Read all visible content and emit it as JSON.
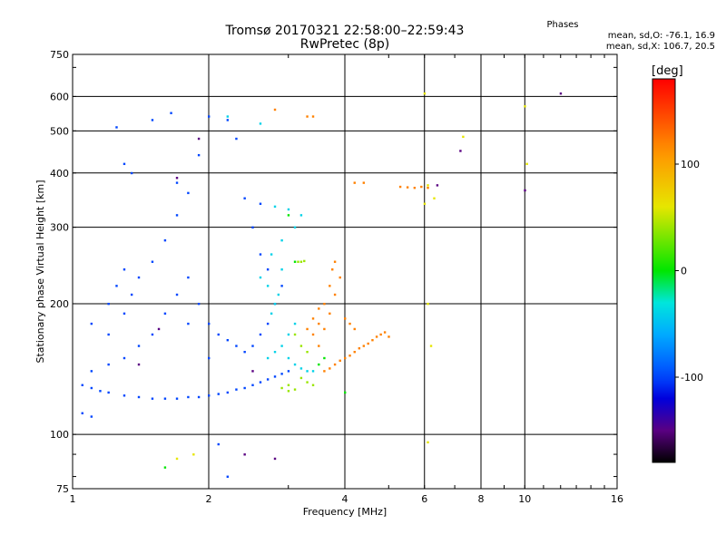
{
  "header": {
    "title_line1": "Tromsø 20170321 22:58:00–22:59:43",
    "title_line2": "RwPretec (8p)"
  },
  "phases_box": {
    "heading": "Phases",
    "line1": "mean, sd,O: -76.1, 16.9",
    "line2": "mean, sd,X: 106.7, 20.5"
  },
  "colorbar": {
    "unit_label": "[deg]",
    "ticks": [
      "100",
      "0",
      "-100"
    ],
    "tick_values": [
      100,
      0,
      -100
    ],
    "range": [
      -180,
      180
    ]
  },
  "chart_data": {
    "type": "scatter",
    "title": "Tromsø 20170321 22:58:00–22:59:43",
    "subtitle": "RwPretec (8p)",
    "xlabel": "Frequency [MHz]",
    "ylabel": "Stationary phase Virtual Height [km]",
    "x_scale": "log",
    "y_scale": "log",
    "xlim": [
      1,
      16
    ],
    "ylim": [
      75,
      750
    ],
    "x_ticks": [
      1,
      2,
      4,
      6,
      8,
      10,
      16
    ],
    "x_tick_labels": [
      "1",
      "2",
      "4",
      "6",
      "8",
      "10",
      "16"
    ],
    "y_ticks": [
      75,
      100,
      200,
      300,
      400,
      500,
      600,
      750
    ],
    "y_tick_labels": [
      "75",
      "100",
      "200",
      "300",
      "400",
      "500",
      "600",
      "750"
    ],
    "grid": true,
    "color_encoding": "phase [deg]",
    "series": [
      {
        "points": [
          [
            1.05,
            130
          ],
          [
            1.1,
            128
          ],
          [
            1.15,
            126
          ],
          [
            1.2,
            125
          ],
          [
            1.3,
            123
          ],
          [
            1.4,
            122
          ],
          [
            1.5,
            121
          ],
          [
            1.6,
            121
          ],
          [
            1.7,
            121
          ],
          [
            1.8,
            122
          ],
          [
            1.9,
            122
          ],
          [
            2.0,
            123
          ],
          [
            2.1,
            124
          ],
          [
            2.2,
            125
          ],
          [
            2.3,
            127
          ],
          [
            2.4,
            128
          ],
          [
            2.5,
            130
          ],
          [
            2.6,
            132
          ],
          [
            2.7,
            134
          ],
          [
            2.8,
            136
          ],
          [
            2.9,
            138
          ],
          [
            3.0,
            140
          ],
          [
            1.1,
            140
          ],
          [
            1.2,
            145
          ],
          [
            1.3,
            150
          ],
          [
            1.4,
            160
          ],
          [
            1.5,
            170
          ],
          [
            1.6,
            190
          ],
          [
            1.7,
            210
          ],
          [
            1.8,
            230
          ],
          [
            1.2,
            170
          ],
          [
            1.3,
            190
          ],
          [
            1.35,
            210
          ],
          [
            1.4,
            230
          ],
          [
            1.5,
            250
          ],
          [
            1.6,
            280
          ],
          [
            1.7,
            320
          ],
          [
            1.8,
            360
          ],
          [
            1.3,
            420
          ],
          [
            1.35,
            400
          ],
          [
            1.25,
            510
          ],
          [
            1.5,
            530
          ],
          [
            1.65,
            550
          ],
          [
            1.9,
            440
          ],
          [
            1.7,
            380
          ],
          [
            2.0,
            180
          ],
          [
            2.1,
            170
          ],
          [
            2.2,
            165
          ],
          [
            2.3,
            160
          ],
          [
            2.4,
            155
          ],
          [
            2.5,
            160
          ],
          [
            2.6,
            170
          ],
          [
            2.7,
            180
          ],
          [
            2.8,
            200
          ],
          [
            2.9,
            220
          ],
          [
            2.7,
            240
          ],
          [
            2.6,
            260
          ],
          [
            2.5,
            300
          ],
          [
            2.6,
            340
          ],
          [
            2.4,
            350
          ],
          [
            2.2,
            530
          ],
          [
            2.3,
            480
          ],
          [
            2.0,
            540
          ],
          [
            1.9,
            200
          ],
          [
            1.8,
            180
          ],
          [
            2.0,
            150
          ],
          [
            1.1,
            180
          ],
          [
            1.2,
            200
          ],
          [
            1.25,
            220
          ],
          [
            1.3,
            240
          ],
          [
            1.1,
            110
          ],
          [
            1.05,
            112
          ],
          [
            2.1,
            95
          ],
          [
            2.2,
            80
          ]
        ],
        "phase": -100
      },
      {
        "points": [
          [
            2.7,
            150
          ],
          [
            2.8,
            155
          ],
          [
            2.9,
            160
          ],
          [
            3.0,
            170
          ],
          [
            3.1,
            180
          ],
          [
            2.75,
            190
          ],
          [
            2.8,
            200
          ],
          [
            2.85,
            210
          ],
          [
            2.7,
            220
          ],
          [
            2.6,
            230
          ],
          [
            2.9,
            240
          ],
          [
            2.75,
            260
          ],
          [
            3.2,
            320
          ],
          [
            3.1,
            300
          ],
          [
            2.9,
            280
          ],
          [
            3.0,
            330
          ],
          [
            2.8,
            335
          ],
          [
            3.0,
            150
          ],
          [
            3.1,
            145
          ],
          [
            3.2,
            142
          ],
          [
            3.3,
            140
          ],
          [
            3.4,
            140
          ],
          [
            2.6,
            520
          ],
          [
            2.2,
            540
          ]
        ],
        "phase": -40
      },
      {
        "points": [
          [
            3.2,
            135
          ],
          [
            3.3,
            132
          ],
          [
            3.4,
            130
          ],
          [
            3.0,
            130
          ],
          [
            2.9,
            128
          ],
          [
            3.1,
            170
          ],
          [
            3.2,
            160
          ],
          [
            3.3,
            155
          ],
          [
            3.15,
            250
          ],
          [
            3.2,
            250
          ],
          [
            3.25,
            251
          ],
          [
            3.1,
            127
          ],
          [
            3.0,
            126
          ]
        ],
        "phase": 40
      },
      {
        "points": [
          [
            3.6,
            140
          ],
          [
            3.7,
            142
          ],
          [
            3.8,
            145
          ],
          [
            3.9,
            148
          ],
          [
            4.0,
            150
          ],
          [
            4.1,
            152
          ],
          [
            4.2,
            155
          ],
          [
            4.3,
            158
          ],
          [
            4.4,
            160
          ],
          [
            4.5,
            162
          ],
          [
            4.6,
            165
          ],
          [
            4.7,
            168
          ],
          [
            4.8,
            170
          ],
          [
            4.9,
            172
          ],
          [
            5.0,
            168
          ],
          [
            3.5,
            180
          ],
          [
            3.6,
            200
          ],
          [
            3.7,
            220
          ],
          [
            3.75,
            240
          ],
          [
            3.8,
            250
          ],
          [
            3.9,
            230
          ],
          [
            3.8,
            210
          ],
          [
            3.7,
            190
          ],
          [
            4.0,
            185
          ],
          [
            4.1,
            180
          ],
          [
            4.2,
            175
          ],
          [
            3.5,
            160
          ],
          [
            3.4,
            170
          ],
          [
            3.3,
            175
          ],
          [
            3.4,
            185
          ],
          [
            3.5,
            195
          ],
          [
            3.6,
            175
          ],
          [
            5.3,
            372
          ],
          [
            5.5,
            371
          ],
          [
            5.7,
            370
          ],
          [
            5.9,
            372
          ],
          [
            6.1,
            370
          ],
          [
            3.3,
            540
          ],
          [
            3.4,
            540
          ],
          [
            2.8,
            560
          ],
          [
            4.2,
            380
          ],
          [
            4.4,
            380
          ]
        ],
        "phase": 120
      },
      {
        "points": [
          [
            1.4,
            145
          ],
          [
            1.55,
            175
          ],
          [
            1.7,
            390
          ],
          [
            1.9,
            480
          ],
          [
            2.5,
            140
          ],
          [
            2.4,
            90
          ],
          [
            2.8,
            88
          ],
          [
            12.0,
            610
          ],
          [
            7.2,
            450
          ],
          [
            10.0,
            365
          ],
          [
            6.4,
            375
          ]
        ],
        "phase": -150
      },
      {
        "points": [
          [
            6.0,
            610
          ],
          [
            6.1,
            375
          ],
          [
            6.3,
            350
          ],
          [
            6.0,
            340
          ],
          [
            7.3,
            485
          ],
          [
            10.0,
            570
          ],
          [
            10.1,
            420
          ],
          [
            6.2,
            160
          ],
          [
            6.1,
            96
          ],
          [
            1.7,
            88
          ],
          [
            1.85,
            90
          ],
          [
            6.1,
            200
          ]
        ],
        "phase": 60
      },
      {
        "points": [
          [
            3.0,
            320
          ],
          [
            3.1,
            250
          ],
          [
            1.6,
            84
          ],
          [
            4.0,
            125
          ],
          [
            3.5,
            145
          ],
          [
            3.6,
            150
          ]
        ],
        "phase": 0
      }
    ]
  }
}
